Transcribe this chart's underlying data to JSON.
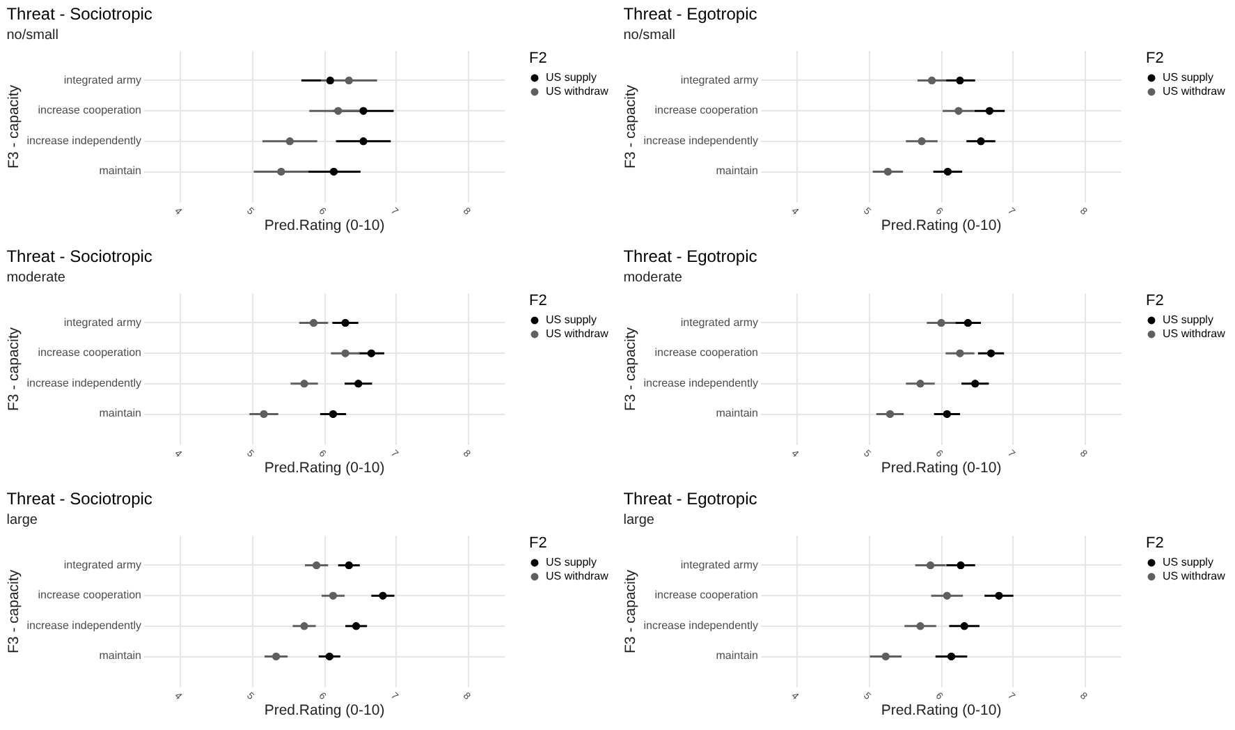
{
  "chart_data": [
    {
      "type": "scatter",
      "orientation": "horizontal",
      "title": "Threat - Sociotropic",
      "subtitle": "no/small",
      "xlabel": "Pred.Rating (0-10)",
      "ylabel": "F3 - capacity",
      "legend_title": "F2",
      "legend": "right",
      "grid": true,
      "marker": "circle",
      "xlim": [
        3.5,
        8.5
      ],
      "xticks": [
        4,
        5,
        6,
        7,
        8
      ],
      "categories": [
        "integrated army",
        "increase cooperation",
        "increase independently",
        "maintain"
      ],
      "series": [
        {
          "name": "US supply",
          "color": "#000000",
          "values": [
            6.09,
            6.55,
            6.55,
            6.14
          ],
          "errors": [
            0.4,
            0.42,
            0.38,
            0.37
          ]
        },
        {
          "name": "US withdraw",
          "color": "#5f5f5f",
          "values": [
            6.35,
            6.2,
            5.53,
            5.41
          ],
          "errors": [
            0.39,
            0.4,
            0.38,
            0.38
          ]
        }
      ]
    },
    {
      "type": "scatter",
      "orientation": "horizontal",
      "title": "Threat - Egotropic",
      "subtitle": "no/small",
      "xlabel": "Pred.Rating (0-10)",
      "ylabel": "F3 - capacity",
      "legend_title": "F2",
      "legend": "right",
      "grid": true,
      "marker": "circle",
      "xlim": [
        3.5,
        8.5
      ],
      "xticks": [
        4,
        5,
        6,
        7,
        8
      ],
      "categories": [
        "integrated army",
        "increase cooperation",
        "increase independently",
        "maintain"
      ],
      "series": [
        {
          "name": "US supply",
          "color": "#000000",
          "values": [
            6.27,
            6.68,
            6.56,
            6.1
          ],
          "errors": [
            0.21,
            0.21,
            0.2,
            0.2
          ]
        },
        {
          "name": "US withdraw",
          "color": "#5f5f5f",
          "values": [
            5.88,
            6.25,
            5.74,
            5.27
          ],
          "errors": [
            0.2,
            0.22,
            0.22,
            0.21
          ]
        }
      ]
    },
    {
      "type": "scatter",
      "orientation": "horizontal",
      "title": "Threat - Sociotropic",
      "subtitle": "moderate",
      "xlabel": "Pred.Rating (0-10)",
      "ylabel": "F3 - capacity",
      "legend_title": "F2",
      "legend": "right",
      "grid": true,
      "marker": "circle",
      "xlim": [
        3.5,
        8.5
      ],
      "xticks": [
        4,
        5,
        6,
        7,
        8
      ],
      "categories": [
        "integrated army",
        "increase cooperation",
        "increase independently",
        "maintain"
      ],
      "series": [
        {
          "name": "US supply",
          "color": "#000000",
          "values": [
            6.3,
            6.66,
            6.48,
            6.13
          ],
          "errors": [
            0.18,
            0.18,
            0.19,
            0.18
          ]
        },
        {
          "name": "US withdraw",
          "color": "#5f5f5f",
          "values": [
            5.86,
            6.3,
            5.73,
            5.17
          ],
          "errors": [
            0.2,
            0.2,
            0.19,
            0.2
          ]
        }
      ]
    },
    {
      "type": "scatter",
      "orientation": "horizontal",
      "title": "Threat - Egotropic",
      "subtitle": "moderate",
      "xlabel": "Pred.Rating (0-10)",
      "ylabel": "F3 - capacity",
      "legend_title": "F2",
      "legend": "right",
      "grid": true,
      "marker": "circle",
      "xlim": [
        3.5,
        8.5
      ],
      "xticks": [
        4,
        5,
        6,
        7,
        8
      ],
      "categories": [
        "integrated army",
        "increase cooperation",
        "increase independently",
        "maintain"
      ],
      "series": [
        {
          "name": "US supply",
          "color": "#000000",
          "values": [
            6.38,
            6.7,
            6.48,
            6.09
          ],
          "errors": [
            0.18,
            0.18,
            0.19,
            0.18
          ]
        },
        {
          "name": "US withdraw",
          "color": "#5f5f5f",
          "values": [
            6.01,
            6.27,
            5.72,
            5.3
          ],
          "errors": [
            0.2,
            0.2,
            0.2,
            0.19
          ]
        }
      ]
    },
    {
      "type": "scatter",
      "orientation": "horizontal",
      "title": "Threat - Sociotropic",
      "subtitle": "large",
      "xlabel": "Pred.Rating (0-10)",
      "ylabel": "F3 - capacity",
      "legend_title": "F2",
      "legend": "right",
      "grid": true,
      "marker": "circle",
      "xlim": [
        3.5,
        8.5
      ],
      "xticks": [
        4,
        5,
        6,
        7,
        8
      ],
      "categories": [
        "integrated army",
        "increase cooperation",
        "increase independently",
        "maintain"
      ],
      "series": [
        {
          "name": "US supply",
          "color": "#000000",
          "values": [
            6.35,
            6.82,
            6.45,
            6.08
          ],
          "errors": [
            0.15,
            0.16,
            0.15,
            0.15
          ]
        },
        {
          "name": "US withdraw",
          "color": "#5f5f5f",
          "values": [
            5.9,
            6.13,
            5.73,
            5.34
          ],
          "errors": [
            0.16,
            0.16,
            0.16,
            0.16
          ]
        }
      ]
    },
    {
      "type": "scatter",
      "orientation": "horizontal",
      "title": "Threat - Egotropic",
      "subtitle": "large",
      "xlabel": "Pred.Rating (0-10)",
      "ylabel": "F3 - capacity",
      "legend_title": "F2",
      "legend": "right",
      "grid": true,
      "marker": "circle",
      "xlim": [
        3.5,
        8.5
      ],
      "xticks": [
        4,
        5,
        6,
        7,
        8
      ],
      "categories": [
        "integrated army",
        "increase cooperation",
        "increase independently",
        "maintain"
      ],
      "series": [
        {
          "name": "US supply",
          "color": "#000000",
          "values": [
            6.28,
            6.81,
            6.33,
            6.15
          ],
          "errors": [
            0.2,
            0.2,
            0.21,
            0.22
          ]
        },
        {
          "name": "US withdraw",
          "color": "#5f5f5f",
          "values": [
            5.86,
            6.09,
            5.72,
            5.24
          ],
          "errors": [
            0.21,
            0.22,
            0.22,
            0.22
          ]
        }
      ]
    }
  ]
}
